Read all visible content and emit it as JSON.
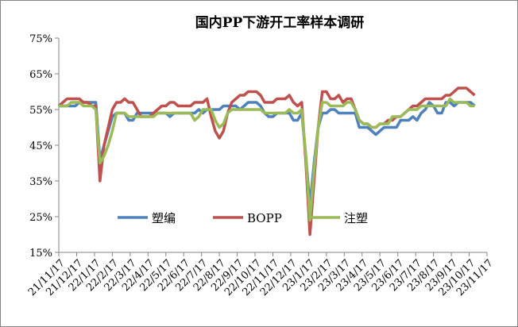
{
  "chart_data": {
    "type": "line",
    "title": "国内PP下游开工率样本调研",
    "xlabel": "",
    "ylabel": "",
    "ylim": [
      15,
      75
    ],
    "yticks": [
      "15%",
      "25%",
      "35%",
      "45%",
      "55%",
      "65%",
      "75%"
    ],
    "ytick_values": [
      15,
      25,
      35,
      45,
      55,
      65,
      75
    ],
    "xtick_labels": [
      "21/11/17",
      "21/12/17",
      "22/1/17",
      "22/2/17",
      "22/3/17",
      "22/4/17",
      "22/5/17",
      "22/6/17",
      "22/7/17",
      "22/8/17",
      "22/9/17",
      "22/10/17",
      "22/11/17",
      "22/12/17",
      "23/1/17",
      "23/2/17",
      "23/3/17",
      "23/4/17",
      "23/5/17",
      "23/6/17",
      "23/7/17",
      "23/8/17",
      "23/9/17",
      "23/10/17",
      "23/11/17"
    ],
    "x_start": "2021-11-17",
    "x_step": "weekly",
    "x_total_weeks": 104,
    "grid": false,
    "legend_position": "inside-bottom",
    "series": [
      {
        "name": "塑编",
        "color": "#4f81bd",
        "values": [
          56,
          56,
          56,
          56,
          56,
          57,
          57,
          57,
          57,
          57,
          41,
          45,
          49,
          53,
          54,
          54,
          54,
          52,
          52,
          54,
          54,
          54,
          54,
          54,
          54,
          54,
          54,
          53,
          54,
          54,
          54,
          54,
          54,
          54,
          55,
          54,
          55,
          55,
          55,
          55,
          56,
          56,
          56,
          56,
          55,
          56,
          57,
          57,
          57,
          56,
          54,
          53,
          53,
          54,
          54,
          54,
          54,
          52,
          52,
          54,
          42,
          28,
          40,
          50,
          54,
          54,
          55,
          55,
          54,
          54,
          54,
          54,
          54,
          50,
          50,
          50,
          49,
          48,
          49,
          50,
          50,
          50,
          50,
          52,
          52,
          52,
          53,
          52,
          54,
          55,
          57,
          56,
          54,
          54,
          57,
          57,
          56,
          57,
          57,
          57,
          57,
          56
        ]
      },
      {
        "name": "BOPP",
        "color": "#c0504d",
        "values": [
          56,
          57,
          58,
          58,
          58,
          58,
          57,
          57,
          56,
          56,
          35,
          45,
          50,
          55,
          57,
          57,
          58,
          57,
          57,
          55,
          53,
          53,
          53,
          54,
          55,
          56,
          56,
          57,
          57,
          56,
          56,
          56,
          56,
          57,
          57,
          57,
          58,
          53,
          49,
          47,
          49,
          54,
          57,
          58,
          59,
          59,
          60,
          60,
          60,
          59,
          57,
          57,
          57,
          58,
          58,
          58,
          59,
          57,
          56,
          57,
          40,
          20,
          35,
          50,
          60,
          60,
          58,
          58,
          59,
          57,
          58,
          58,
          55,
          52,
          51,
          51,
          50,
          50,
          51,
          51,
          52,
          52,
          53,
          53,
          54,
          55,
          56,
          56,
          57,
          58,
          58,
          58,
          58,
          58,
          59,
          59,
          60,
          61,
          61,
          61,
          60,
          59
        ]
      },
      {
        "name": "注塑",
        "color": "#9bbb59",
        "values": [
          56,
          56,
          56,
          57,
          57,
          57,
          56,
          56,
          56,
          55,
          40,
          42,
          45,
          49,
          54,
          54,
          54,
          53,
          53,
          53,
          53,
          53,
          53,
          53,
          54,
          54,
          54,
          54,
          54,
          54,
          54,
          54,
          54,
          52,
          53,
          55,
          55,
          55,
          52,
          50,
          51,
          54,
          55,
          55,
          55,
          55,
          55,
          55,
          55,
          55,
          54,
          54,
          54,
          54,
          54,
          54,
          55,
          54,
          54,
          55,
          42,
          24,
          38,
          50,
          57,
          57,
          56,
          56,
          56,
          56,
          57,
          57,
          55,
          52,
          51,
          51,
          50,
          50,
          51,
          51,
          51,
          53,
          53,
          53,
          54,
          55,
          55,
          55,
          56,
          56,
          56,
          56,
          56,
          56,
          56,
          58,
          57,
          57,
          57,
          57,
          56,
          56
        ]
      }
    ]
  }
}
